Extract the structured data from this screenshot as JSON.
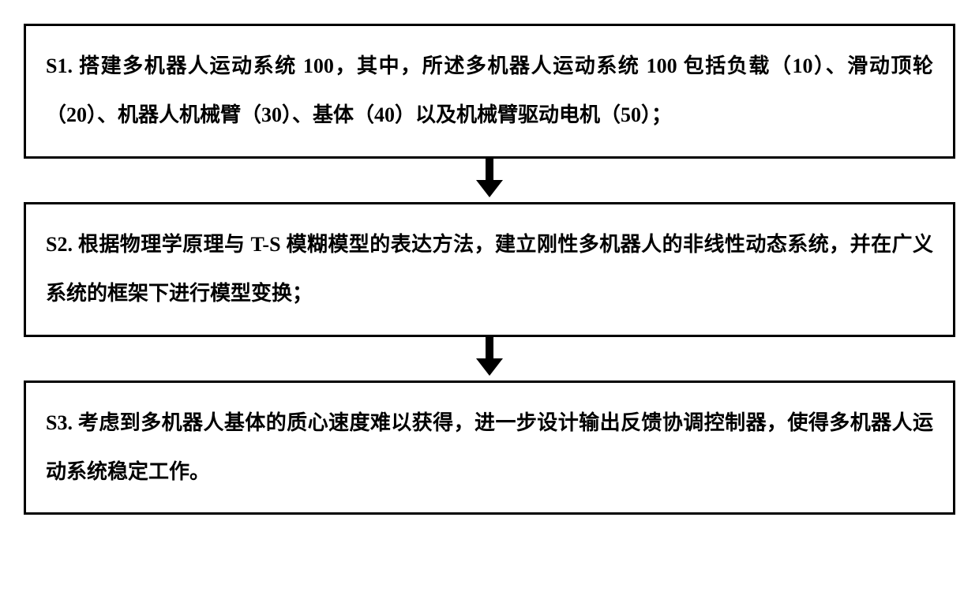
{
  "flowchart": {
    "type": "flowchart",
    "direction": "vertical",
    "background_color": "#ffffff",
    "box_border_color": "#000000",
    "box_border_width": 3,
    "arrow_color": "#000000",
    "text_color": "#000000",
    "font_size": 26,
    "font_weight": "bold",
    "line_height": 2.4,
    "steps": [
      {
        "id": "S1",
        "text": "S1. 搭建多机器人运动系统 100，其中，所述多机器人运动系统 100 包括负载（10）、滑动顶轮（20）、机器人机械臂（30）、基体（40）以及机械臂驱动电机（50）；"
      },
      {
        "id": "S2",
        "text": "S2. 根据物理学原理与 T-S 模糊模型的表达方法，建立刚性多机器人的非线性动态系统，并在广义系统的框架下进行模型变换；"
      },
      {
        "id": "S3",
        "text": "S3. 考虑到多机器人基体的质心速度难以获得，进一步设计输出反馈协调控制器，使得多机器人运动系统稳定工作。"
      }
    ]
  }
}
